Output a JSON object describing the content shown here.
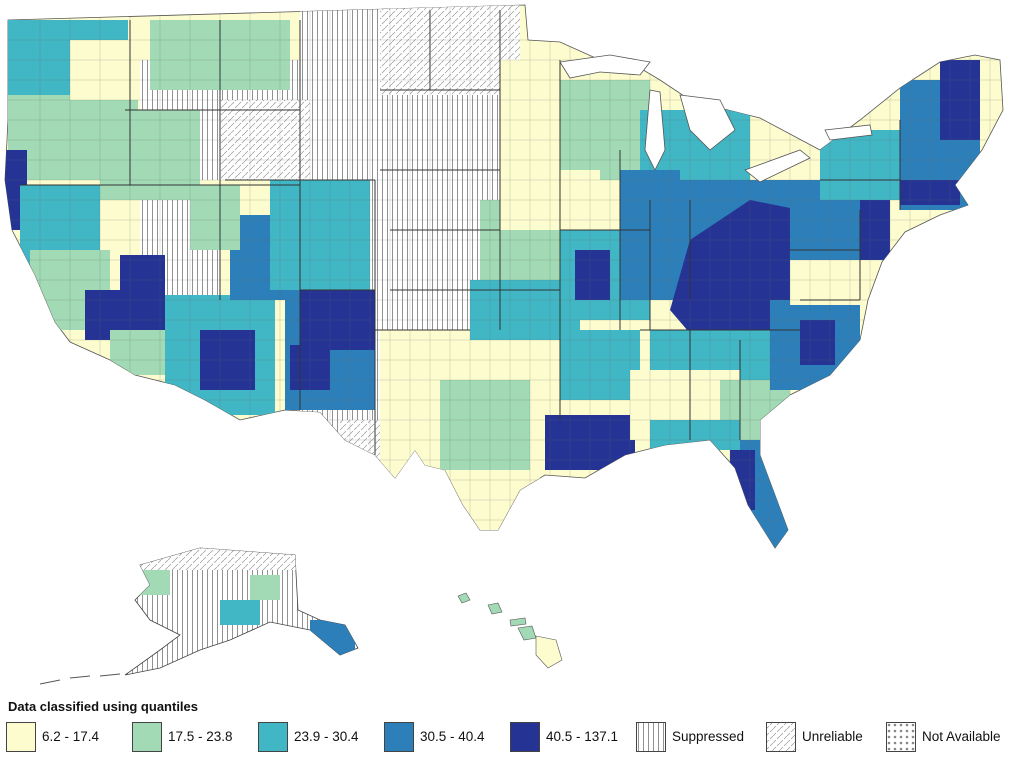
{
  "legend": {
    "title": "Data classified using quantiles",
    "classes": [
      {
        "label": "6.2 - 17.4",
        "color": "#fdfccf",
        "pattern": "solid"
      },
      {
        "label": "17.5 - 23.8",
        "color": "#a1dab4",
        "pattern": "solid"
      },
      {
        "label": "23.9 - 30.4",
        "color": "#41b6c4",
        "pattern": "solid"
      },
      {
        "label": "30.5 - 40.4",
        "color": "#2c7fb8",
        "pattern": "solid"
      },
      {
        "label": "40.5 - 137.1",
        "color": "#253494",
        "pattern": "solid"
      },
      {
        "label": "Suppressed",
        "color": "#ffffff",
        "pattern": "vertical-lines"
      },
      {
        "label": "Unreliable",
        "color": "#ffffff",
        "pattern": "diagonal-dashes"
      },
      {
        "label": "Not Available",
        "color": "#ffffff",
        "pattern": "dots"
      }
    ]
  },
  "map": {
    "region": "United States counties",
    "insets": [
      "Alaska",
      "Hawaii"
    ]
  }
}
